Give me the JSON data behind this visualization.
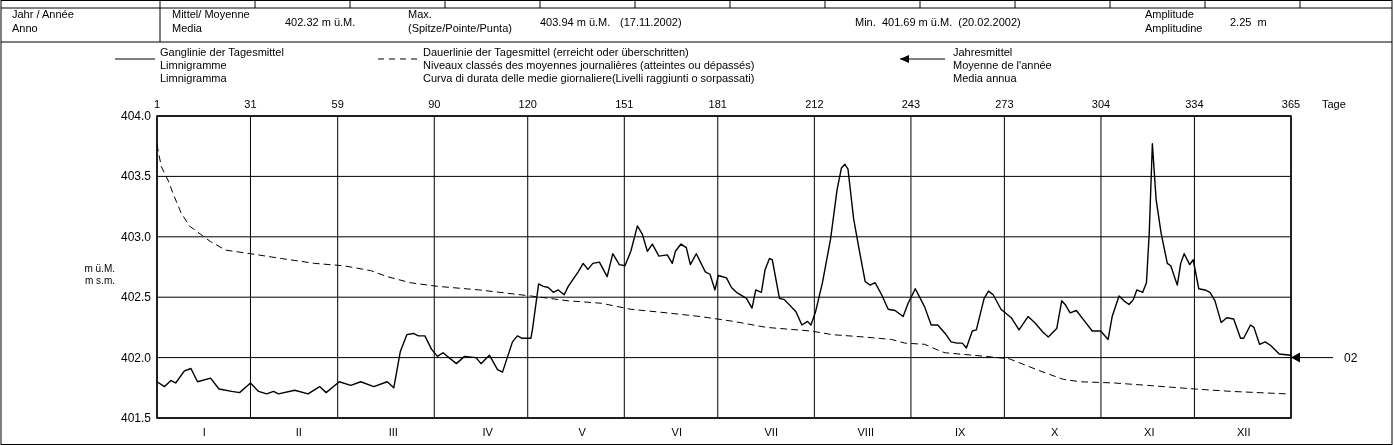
{
  "chart_data": {
    "type": "line",
    "xlim": [
      1,
      365
    ],
    "xticks": [
      1,
      31,
      59,
      90,
      120,
      151,
      181,
      212,
      243,
      273,
      304,
      334,
      365
    ],
    "xlabel": "Tage",
    "ylim": [
      401.5,
      404
    ],
    "yticks": [
      {
        "value": 401.5,
        "label": "401.5"
      },
      {
        "value": 402,
        "label": "402.0"
      },
      {
        "value": 402.5,
        "label": "402.5"
      },
      {
        "value": 403,
        "label": "403.0"
      },
      {
        "value": 403.5,
        "label": "403.5"
      },
      {
        "value": 404,
        "label": "404.0"
      }
    ],
    "ylabel": "m ü.M.\nm s.m.",
    "grid": true,
    "legend": "top",
    "series": [
      {
        "name": "Ganglinie der Tagesmittel\nLimnigramme\nLimnigramma",
        "color": "#000000",
        "line_style": "solid",
        "x": [
          1,
          3.4,
          5.5,
          7,
          9.8,
          11.9,
          14,
          18.2,
          20.9,
          25,
          27.5,
          31,
          33.6,
          36.2,
          38.4,
          40,
          45.2,
          49.5,
          53.2,
          55.3,
          59.5,
          63.2,
          66.4,
          70.6,
          74.9,
          77,
          79.1,
          81.2,
          83.3,
          84.9,
          87,
          89.1,
          91,
          92.8,
          97.1,
          99.7,
          103.4,
          105,
          107.7,
          110.3,
          111.9,
          115.1,
          116.7,
          118.2,
          121,
          121.5,
          123.5,
          125,
          126.6,
          128.2,
          129.8,
          131.7,
          133,
          136.2,
          137.8,
          139.3,
          140.9,
          143,
          145.5,
          147.3,
          149.4,
          151.2,
          153.1,
          155.2,
          156.8,
          158.4,
          160,
          162.1,
          164.8,
          166.4,
          167.4,
          169.2,
          170.9,
          172.2,
          174.1,
          177,
          178.5,
          180.1,
          181.2,
          183.8,
          185.4,
          187,
          190.2,
          192,
          193.2,
          195,
          196.2,
          197.6,
          198.5,
          200.8,
          202.4,
          206.1,
          208,
          209.8,
          210.9,
          212.4,
          214.6,
          217.2,
          219.3,
          220.7,
          221.8,
          222.8,
          224.6,
          226.2,
          228.3,
          229.9,
          231.5,
          233.6,
          235.7,
          237.9,
          240.5,
          242.1,
          244.4,
          247.4,
          249.5,
          251.6,
          254,
          255.9,
          257.8,
          259.5,
          260.8,
          262.7,
          264,
          266.5,
          267.9,
          269.4,
          271.9,
          275.2,
          277.7,
          280.6,
          282.7,
          285.4,
          287.1,
          289.8,
          291.4,
          292.5,
          294.1,
          296.1,
          298.5,
          301.2,
          303.9,
          306.3,
          307.6,
          309.8,
          311.4,
          313,
          314.4,
          315.5,
          317.4,
          318.6,
          319.5,
          320.5,
          321.7,
          323.3,
          325.3,
          326.4,
          328.5,
          329.6,
          330.7,
          332.5,
          333.6,
          335.4,
          337.4,
          339,
          340.6,
          342.6,
          344.4,
          346.6,
          348.8,
          349.8,
          352,
          353.1,
          354.9,
          356.7,
          358.5,
          361.2,
          365
        ],
        "values": [
          401.8,
          401.76,
          401.81,
          401.79,
          401.89,
          401.91,
          401.8,
          401.83,
          401.74,
          401.72,
          401.71,
          401.79,
          401.72,
          401.7,
          401.72,
          401.7,
          401.73,
          401.7,
          401.76,
          401.71,
          401.8,
          401.77,
          401.8,
          401.76,
          401.8,
          401.75,
          402.05,
          402.19,
          402.2,
          402.18,
          402.18,
          402.07,
          402.01,
          402.04,
          401.95,
          402.01,
          402,
          401.95,
          402.02,
          401.9,
          401.88,
          402.13,
          402.18,
          402.16,
          402.16,
          402.23,
          402.61,
          402.59,
          402.58,
          402.54,
          402.56,
          402.52,
          402.59,
          402.71,
          402.78,
          402.73,
          402.78,
          402.79,
          402.67,
          402.86,
          402.77,
          402.76,
          402.88,
          403.09,
          403.02,
          402.88,
          402.94,
          402.84,
          402.85,
          402.78,
          402.88,
          402.94,
          402.91,
          402.77,
          402.86,
          402.71,
          402.69,
          402.56,
          402.68,
          402.66,
          402.58,
          402.54,
          402.49,
          402.41,
          402.56,
          402.54,
          402.73,
          402.82,
          402.81,
          402.49,
          402.48,
          402.38,
          402.27,
          402.3,
          402.27,
          402.38,
          402.62,
          402.98,
          403.39,
          403.57,
          403.6,
          403.56,
          403.15,
          402.92,
          402.63,
          402.6,
          402.62,
          402.52,
          402.4,
          402.39,
          402.34,
          402.45,
          402.57,
          402.42,
          402.27,
          402.27,
          402.2,
          402.13,
          402.12,
          402.12,
          402.08,
          402.22,
          402.23,
          402.49,
          402.55,
          402.52,
          402.4,
          402.33,
          402.23,
          402.34,
          402.29,
          402.21,
          402.17,
          402.24,
          402.47,
          402.44,
          402.37,
          402.39,
          402.31,
          402.22,
          402.22,
          402.15,
          402.34,
          402.51,
          402.47,
          402.44,
          402.48,
          402.56,
          402.54,
          402.62,
          403.03,
          403.77,
          403.31,
          403.03,
          402.78,
          402.76,
          402.6,
          402.78,
          402.86,
          402.77,
          402.81,
          402.57,
          402.56,
          402.54,
          402.47,
          402.29,
          402.33,
          402.32,
          402.16,
          402.16,
          402.27,
          402.25,
          402.11,
          402.13,
          402.1,
          402.03,
          402.02
        ]
      },
      {
        "name": "Dauerlinie der Tagesmittel (erreicht oder überschritten)\nNiveaux classés des moyennes journalières (atteintes ou dépassés)\nCurva di durata delle medie giornaliere(Livelli raggiunti o sorpassati)",
        "color": "#000000",
        "line_style": "dashed",
        "x": [
          1,
          2.4,
          4.5,
          6.6,
          8.7,
          11.4,
          14.5,
          18.2,
          23,
          31,
          41,
          51.6,
          61,
          69.6,
          74.9,
          82.3,
          91,
          104.5,
          121,
          133,
          143.6,
          153.1,
          164.8,
          175.4,
          186,
          196.6,
          211,
          217.7,
          228.3,
          236.8,
          241,
          247.4,
          252.7,
          254,
          267,
          274.6,
          284.4,
          291.9,
          297.4,
          308.2,
          319,
          334.1,
          346,
          363.3
        ],
        "values": [
          403.76,
          403.58,
          403.47,
          403.33,
          403.2,
          403.09,
          403.03,
          402.96,
          402.89,
          402.86,
          402.82,
          402.78,
          402.76,
          402.72,
          402.67,
          402.62,
          402.59,
          402.56,
          402.51,
          402.47,
          402.45,
          402.4,
          402.37,
          402.34,
          402.3,
          402.25,
          402.22,
          402.19,
          402.17,
          402.15,
          402.12,
          402.11,
          402.05,
          402.04,
          402.01,
          401.99,
          401.89,
          401.82,
          401.8,
          401.79,
          401.77,
          401.74,
          401.72,
          401.7
        ]
      }
    ],
    "annotations": [
      "Jahr / Année",
      "Anno",
      "Mittel/ Moyenne",
      "Media",
      "402.32 m ü.M.",
      "Max.",
      "(Spitze/Pointe/Punta)",
      "403.94 m ü.M.",
      "(17.11.2002)",
      "Min.  401.69 m ü.M.  (20.02.2002)",
      "Amplitude",
      "Amplitudine",
      "2.25  m",
      "Jahresmittel",
      "Moyenne de l'année",
      "Media annua",
      "02",
      "I",
      "II",
      "III",
      "IV",
      "V",
      "VI",
      "VII",
      "VIII",
      "IX",
      "X",
      "XI",
      "XII"
    ]
  }
}
